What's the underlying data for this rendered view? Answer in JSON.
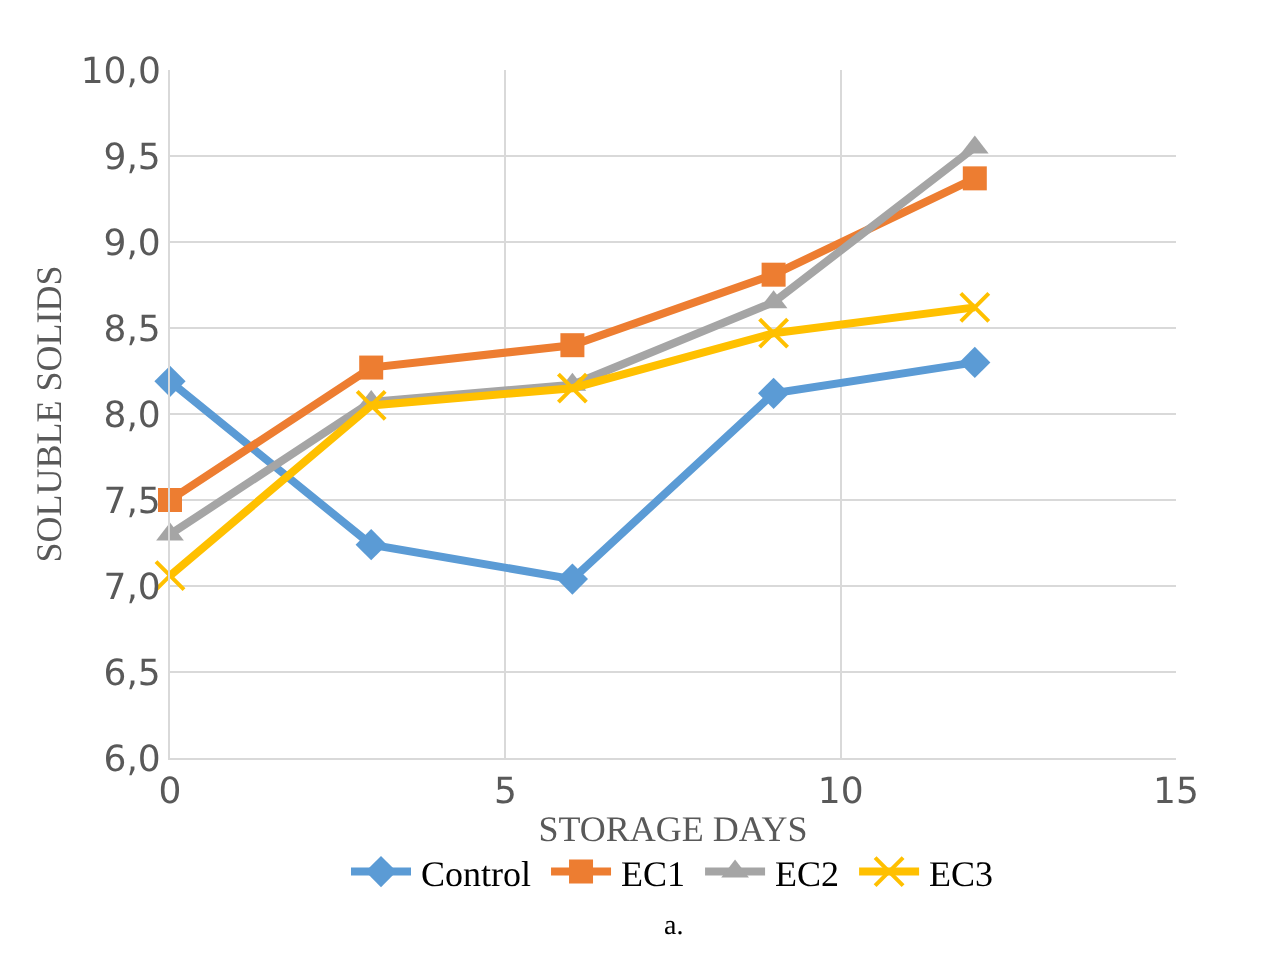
{
  "chart_data": {
    "type": "line",
    "xlabel": "STORAGE DAYS",
    "ylabel": "SOLUBLE SOLIDS",
    "x": [
      0,
      3,
      6,
      9,
      12
    ],
    "series": [
      {
        "name": "Control",
        "color": "#5b9bd5",
        "marker": "diamond",
        "values": [
          8.19,
          7.24,
          7.04,
          8.12,
          8.3
        ]
      },
      {
        "name": "EC1",
        "color": "#ed7d31",
        "marker": "square",
        "values": [
          7.5,
          8.27,
          8.4,
          8.81,
          9.37
        ]
      },
      {
        "name": "EC2",
        "color": "#a5a5a5",
        "marker": "triangle",
        "values": [
          7.3,
          8.07,
          8.17,
          8.65,
          9.55
        ]
      },
      {
        "name": "EC3",
        "color": "#ffc000",
        "marker": "cross",
        "values": [
          7.06,
          8.05,
          8.15,
          8.47,
          8.62
        ]
      }
    ],
    "xlim": [
      0,
      15
    ],
    "xticks": [
      0,
      5,
      10,
      15
    ],
    "ylim": [
      6,
      10
    ],
    "yticks": [
      {
        "value": 6,
        "label": "6,0"
      },
      {
        "value": 6.5,
        "label": "6,5"
      },
      {
        "value": 7,
        "label": "7,0"
      },
      {
        "value": 7.5,
        "label": "7,5"
      },
      {
        "value": 8,
        "label": "8,0"
      },
      {
        "value": 8.5,
        "label": "8,5"
      },
      {
        "value": 9,
        "label": "9,0"
      },
      {
        "value": 9.5,
        "label": "9,5"
      },
      {
        "value": 10,
        "label": "10,0"
      }
    ],
    "grid": true,
    "legend": "bottom",
    "line_style": "solid",
    "annotations": [
      "a."
    ]
  }
}
